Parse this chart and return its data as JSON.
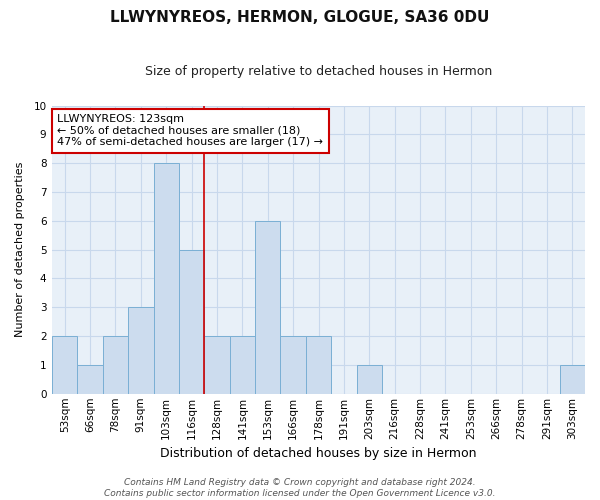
{
  "title": "LLWYNYREOS, HERMON, GLOGUE, SA36 0DU",
  "subtitle": "Size of property relative to detached houses in Hermon",
  "xlabel": "Distribution of detached houses by size in Hermon",
  "ylabel": "Number of detached properties",
  "categories": [
    "53sqm",
    "66sqm",
    "78sqm",
    "91sqm",
    "103sqm",
    "116sqm",
    "128sqm",
    "141sqm",
    "153sqm",
    "166sqm",
    "178sqm",
    "191sqm",
    "203sqm",
    "216sqm",
    "228sqm",
    "241sqm",
    "253sqm",
    "266sqm",
    "278sqm",
    "291sqm",
    "303sqm"
  ],
  "values": [
    2,
    1,
    2,
    3,
    8,
    5,
    2,
    2,
    6,
    2,
    2,
    0,
    1,
    0,
    0,
    0,
    0,
    0,
    0,
    0,
    1
  ],
  "bar_color": "#ccdcee",
  "bar_edge_color": "#7aafd4",
  "bar_edge_width": 0.7,
  "vline_x_index": 5.5,
  "vline_color": "#cc0000",
  "annotation_line1": "LLWYNYREOS: 123sqm",
  "annotation_line2": "← 50% of detached houses are smaller (18)",
  "annotation_line3": "47% of semi-detached houses are larger (17) →",
  "annotation_box_color": "#ffffff",
  "annotation_box_edge_color": "#cc0000",
  "ylim": [
    0,
    10
  ],
  "yticks": [
    0,
    1,
    2,
    3,
    4,
    5,
    6,
    7,
    8,
    9,
    10
  ],
  "grid_color": "#c8d8ec",
  "plot_bg_color": "#e8f0f8",
  "fig_bg_color": "#ffffff",
  "footer": "Contains HM Land Registry data © Crown copyright and database right 2024.\nContains public sector information licensed under the Open Government Licence v3.0.",
  "title_fontsize": 11,
  "subtitle_fontsize": 9,
  "xlabel_fontsize": 9,
  "ylabel_fontsize": 8,
  "tick_fontsize": 7.5,
  "footer_fontsize": 6.5
}
